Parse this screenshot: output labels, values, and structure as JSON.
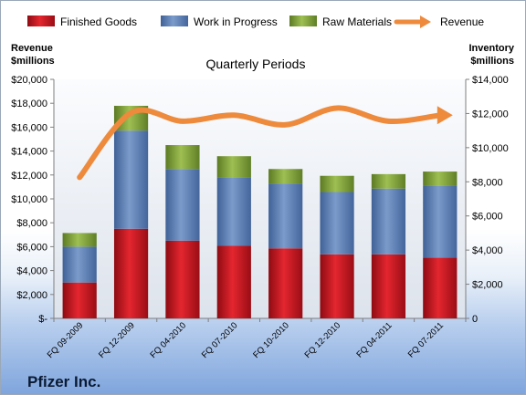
{
  "chart_data": {
    "type": "bar",
    "title": "Quarterly Periods",
    "company": "Pfizer Inc.",
    "left_axis_label": [
      "Revenue",
      "$millions"
    ],
    "right_axis_label": [
      "Inventory",
      "$millions"
    ],
    "categories": [
      "FQ 09-2009",
      "FQ 12-2009",
      "FQ 04-2010",
      "FQ 07-2010",
      "FQ 10-2010",
      "FQ 12-2010",
      "FQ 04-2011",
      "FQ 07-2011"
    ],
    "series": [
      {
        "name": "Finished Goods",
        "axis": "right",
        "stacked": true,
        "color": "#c0121c",
        "values": [
          2100,
          5250,
          4550,
          4250,
          4100,
          3750,
          3750,
          3550
        ]
      },
      {
        "name": "Work in Progress",
        "axis": "right",
        "stacked": true,
        "color": "#5a7fb8",
        "values": [
          2100,
          5750,
          4200,
          4000,
          3800,
          3650,
          3850,
          4200
        ]
      },
      {
        "name": "Raw Materials",
        "axis": "right",
        "stacked": true,
        "color": "#7fa03a",
        "values": [
          800,
          1450,
          1400,
          1250,
          850,
          950,
          850,
          850
        ]
      },
      {
        "name": "Revenue",
        "axis": "left",
        "type": "line",
        "color": "#ee8a3c",
        "values": [
          11800,
          17200,
          16500,
          17000,
          16200,
          17600,
          16500,
          17000
        ]
      }
    ],
    "ylim_left": [
      0,
      20000
    ],
    "ylim_right": [
      0,
      14000
    ],
    "left_ticks": [
      "$-",
      "$2,000",
      "$4,000",
      "$6,000",
      "$8,000",
      "$10,000",
      "$12,000",
      "$14,000",
      "$16,000",
      "$18,000",
      "$20,000"
    ],
    "right_ticks": [
      "0",
      "$2,000",
      "$4,000",
      "$6,000",
      "$8,000",
      "$10,000",
      "$12,000",
      "$14,000"
    ],
    "legend_position": "top",
    "grid": false
  }
}
